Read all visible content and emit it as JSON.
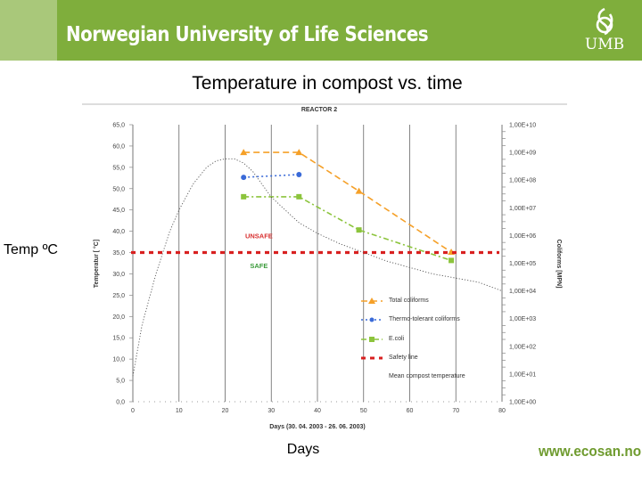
{
  "header": {
    "title": "Norwegian University of Life Sciences",
    "logo_text": "UMB"
  },
  "slide": {
    "title": "Temperature in compost  vs. time",
    "y_label": "Temp ºC",
    "x_label": "Days",
    "footer_url": "www.ecosan.no"
  },
  "chart_data": {
    "type": "line",
    "title": "REACTOR 2",
    "xlabel": "Days  (30. 04. 2003 - 26. 06. 2003)",
    "ylabel": "Temperatur [ °C]",
    "ylabel_right": "Coliforms [MPN]",
    "xlim": [
      0,
      80
    ],
    "ylim": [
      0,
      65
    ],
    "x_ticks": [
      0,
      10,
      20,
      30,
      40,
      50,
      60,
      70,
      80
    ],
    "y_ticks": [
      "0,0",
      "5,0",
      "10,0",
      "15,0",
      "20,0",
      "25,0",
      "30,0",
      "35,0",
      "40,0",
      "45,0",
      "50,0",
      "55,0",
      "60,0",
      "65,0"
    ],
    "y_right_ticks": [
      "1,00E+00",
      "1,00E+01",
      "1,00E+02",
      "1,00E+03",
      "1,00E+04",
      "1,00E+05",
      "1,00E+06",
      "1,00E+07",
      "1,00E+08",
      "1,00E+09",
      "1,00E+10"
    ],
    "y_right_log_range": [
      0,
      10
    ],
    "grid": "vertical",
    "legend_position": "bottom-right",
    "annotations": [
      {
        "text": "UNSAFE",
        "x": 25,
        "y": 39,
        "color": "#d83030"
      },
      {
        "text": "SAFE",
        "x": 25,
        "y": 32,
        "color": "#3a9a3a"
      }
    ],
    "series": [
      {
        "name": "Total coliforms",
        "color": "#f5a028",
        "axis": "right",
        "style": "dash",
        "marker": "triangle",
        "x": [
          24,
          36,
          49,
          69
        ],
        "y": [
          9.0,
          9.0,
          7.6,
          5.4
        ]
      },
      {
        "name": "Thermo-tolerant coliforms",
        "color": "#3a6ad8",
        "axis": "right",
        "style": "dot",
        "marker": "circle",
        "x": [
          24,
          36
        ],
        "y": [
          8.1,
          8.2
        ]
      },
      {
        "name": "E.coli",
        "color": "#8cc43c",
        "axis": "right",
        "style": "dashdot",
        "marker": "square",
        "x": [
          24,
          36,
          49,
          69
        ],
        "y": [
          7.4,
          7.4,
          6.2,
          5.1
        ]
      },
      {
        "name": "Safety line",
        "color": "#d82020",
        "axis": "left",
        "style": "bigdash",
        "marker": "none",
        "x": [
          0,
          80
        ],
        "y": [
          35,
          35
        ]
      },
      {
        "name": "Mean compost temperature",
        "color": "#555555",
        "axis": "left",
        "style": "dot-thin",
        "marker": "none",
        "x": [
          0,
          2,
          5,
          8,
          10,
          13,
          16,
          18,
          20,
          22,
          24,
          26,
          28,
          30,
          33,
          36,
          40,
          45,
          50,
          55,
          60,
          65,
          70,
          75,
          80
        ],
        "y": [
          6,
          18,
          30,
          40,
          45,
          51,
          55,
          56.5,
          57,
          57,
          56,
          54,
          51,
          48,
          45,
          42,
          39.5,
          37,
          35,
          33,
          31.5,
          30,
          29,
          28,
          26
        ]
      }
    ]
  }
}
